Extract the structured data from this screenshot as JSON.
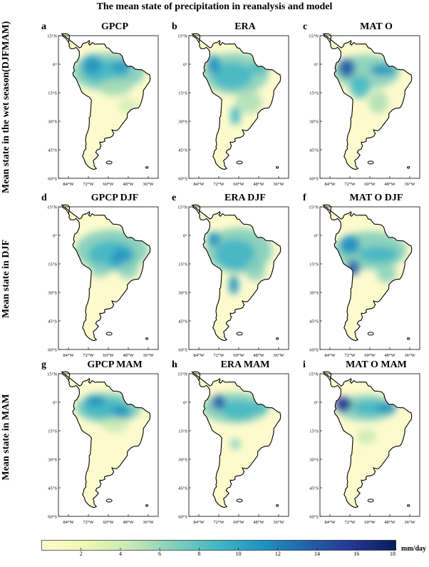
{
  "title": "The mean state of precipitation in reanalysis and model",
  "row_labels": [
    "Mean state in the wet season(DJFMAM)",
    "Mean state in DJF",
    "Mean state in MAM"
  ],
  "panels": [
    {
      "label": "a",
      "title": "GPCP"
    },
    {
      "label": "b",
      "title": "ERA"
    },
    {
      "label": "c",
      "title": "MAT  O"
    },
    {
      "label": "d",
      "title": "GPCP DJF"
    },
    {
      "label": "e",
      "title": "ERA DJF"
    },
    {
      "label": "f",
      "title": "MAT  O  DJF"
    },
    {
      "label": "g",
      "title": "GPCP MAM"
    },
    {
      "label": "h",
      "title": "ERA MAM"
    },
    {
      "label": "i",
      "title": "MAT  O  MAM"
    }
  ],
  "lat_ticks": [
    "15°N",
    "0°",
    "15°S",
    "30°S",
    "45°S",
    "60°S"
  ],
  "lon_ticks": [
    "84°W",
    "72°W",
    "60°W",
    "48°W",
    "36°W"
  ],
  "colorbar": {
    "ticks": [
      "2",
      "4",
      "6",
      "8",
      "10",
      "12",
      "14",
      "16",
      "18"
    ],
    "min": 0,
    "max": 18,
    "unit": "mm/day",
    "colors": [
      "#fffccf",
      "#e9f5b9",
      "#c7e9b4",
      "#7fcdbb",
      "#41b6c4",
      "#1d91c0",
      "#225ea8",
      "#253494",
      "#081d58"
    ]
  }
}
